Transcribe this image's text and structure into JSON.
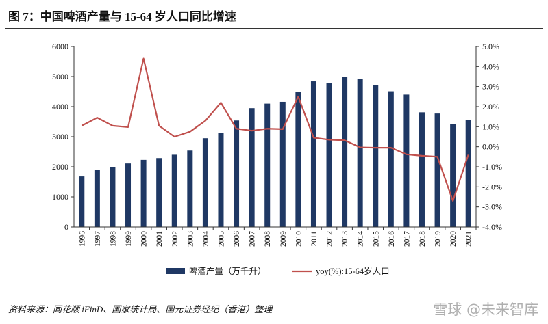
{
  "chart_data": {
    "type": "bar",
    "title": "图 7：中国啤酒产量与 15-64 岁人口同比增速",
    "categories": [
      "1996",
      "1997",
      "1998",
      "1999",
      "2000",
      "2001",
      "2002",
      "2003",
      "2004",
      "2005",
      "2006",
      "2007",
      "2008",
      "2009",
      "2010",
      "2011",
      "2012",
      "2013",
      "2014",
      "2015",
      "2016",
      "2017",
      "2018",
      "2019",
      "2020",
      "2021"
    ],
    "series": [
      {
        "name": "啤酒产量（万千升）",
        "type": "bar",
        "axis": "left",
        "color": "#1f3864",
        "values": [
          1680,
          1890,
          1990,
          2110,
          2230,
          2290,
          2400,
          2540,
          2950,
          3120,
          3540,
          3950,
          4100,
          4160,
          4480,
          4840,
          4790,
          4980,
          4920,
          4720,
          4510,
          4400,
          3810,
          3770,
          3410,
          3560
        ]
      },
      {
        "name": "yoy(%):15-64岁人口",
        "type": "line",
        "axis": "right",
        "color": "#c0504d",
        "values": [
          1.05,
          1.45,
          1.05,
          0.98,
          4.4,
          1.05,
          0.5,
          0.75,
          1.3,
          2.2,
          0.9,
          0.8,
          0.9,
          0.88,
          2.5,
          0.45,
          0.35,
          0.32,
          -0.03,
          -0.05,
          -0.05,
          -0.38,
          -0.45,
          -0.5,
          -2.7,
          -0.4
        ]
      }
    ],
    "y_left": {
      "range": [
        0,
        6000
      ],
      "ticks": [
        "0",
        "1000",
        "2000",
        "3000",
        "4000",
        "5000",
        "6000"
      ]
    },
    "y_right": {
      "range": [
        -4,
        5
      ],
      "ticks": [
        "-4.0%",
        "-3.0%",
        "-2.0%",
        "-1.0%",
        "0.0%",
        "1.0%",
        "2.0%",
        "3.0%",
        "4.0%",
        "5.0%"
      ]
    },
    "grid": false,
    "legend": "bottom"
  },
  "source": "资料来源：同花顺 iFinD、国家统计局、国元证券经纪（香港）整理",
  "watermark": "雪球 @未来智库"
}
